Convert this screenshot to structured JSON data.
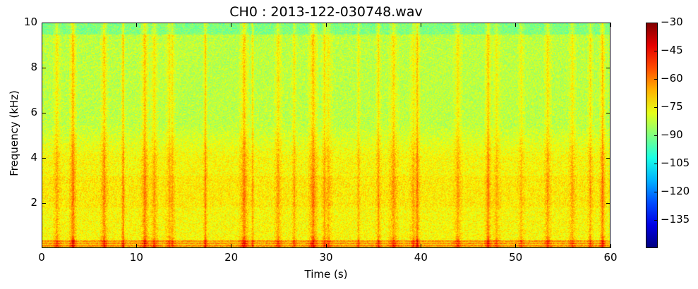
{
  "chart_data": {
    "type": "heatmap",
    "title": "CH0 : 2013-122-030748.wav",
    "xlabel": "Time (s)",
    "ylabel": "Frequency (kHz)",
    "xlim": [
      0,
      60
    ],
    "ylim": [
      0,
      10
    ],
    "xticks": [
      0,
      10,
      20,
      30,
      40,
      50,
      60
    ],
    "yticks": [
      2,
      4,
      6,
      8,
      10
    ],
    "colormap": "jet",
    "colorbar": {
      "range": [
        -150,
        -30
      ],
      "ticks": [
        -30,
        -45,
        -60,
        -75,
        -90,
        -105,
        -120,
        -135
      ]
    },
    "background_level_db": -75,
    "high_band_level_db": -88,
    "vertical_streaks_s": [
      1.5,
      3.2,
      6.5,
      8.5,
      10.8,
      11.8,
      13.4,
      13.7,
      17.2,
      21.3,
      22.2,
      24.9,
      26.6,
      28.6,
      29.8,
      30.2,
      33.4,
      35.5,
      37.1,
      39.2,
      39.6,
      43.9,
      47.1,
      48.0,
      50.6,
      53.4,
      56.0,
      57.9,
      59.2
    ],
    "low_frequency_lines_khz": [
      0.1,
      0.2,
      0.3
    ]
  }
}
